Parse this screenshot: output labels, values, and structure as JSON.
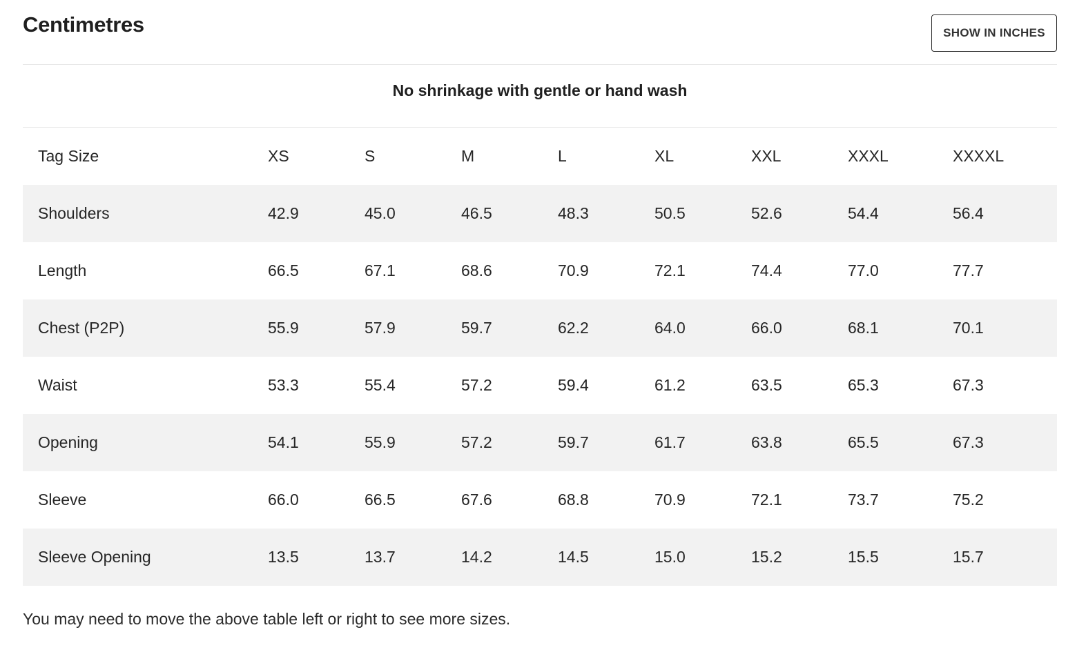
{
  "heading": "Centimetres",
  "toggle_label": "SHOW IN INCHES",
  "note": "No shrinkage with gentle or hand wash",
  "table": {
    "header_label": "Tag Size",
    "sizes": [
      "XS",
      "S",
      "M",
      "L",
      "XL",
      "XXL",
      "XXXL",
      "XXXXL"
    ],
    "rows": [
      {
        "label": "Shoulders",
        "values": [
          "42.9",
          "45.0",
          "46.5",
          "48.3",
          "50.5",
          "52.6",
          "54.4",
          "56.4"
        ]
      },
      {
        "label": "Length",
        "values": [
          "66.5",
          "67.1",
          "68.6",
          "70.9",
          "72.1",
          "74.4",
          "77.0",
          "77.7"
        ]
      },
      {
        "label": "Chest (P2P)",
        "values": [
          "55.9",
          "57.9",
          "59.7",
          "62.2",
          "64.0",
          "66.0",
          "68.1",
          "70.1"
        ]
      },
      {
        "label": "Waist",
        "values": [
          "53.3",
          "55.4",
          "57.2",
          "59.4",
          "61.2",
          "63.5",
          "65.3",
          "67.3"
        ]
      },
      {
        "label": "Opening",
        "values": [
          "54.1",
          "55.9",
          "57.2",
          "59.7",
          "61.7",
          "63.8",
          "65.5",
          "67.3"
        ]
      },
      {
        "label": "Sleeve",
        "values": [
          "66.0",
          "66.5",
          "67.6",
          "68.8",
          "70.9",
          "72.1",
          "73.7",
          "75.2"
        ]
      },
      {
        "label": "Sleeve Opening",
        "values": [
          "13.5",
          "13.7",
          "14.2",
          "14.5",
          "15.0",
          "15.2",
          "15.5",
          "15.7"
        ]
      }
    ]
  },
  "footnote": "You may need to move the above table left or right to see more sizes.",
  "colors": {
    "shaded_row": "#f2f2f2",
    "text": "#222222",
    "divider": "#e8e8e8"
  }
}
